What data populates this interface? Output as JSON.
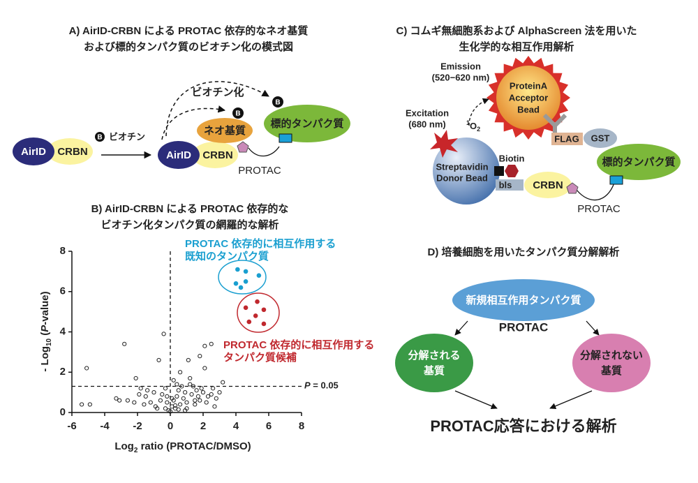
{
  "panel_a": {
    "title_lines": [
      "A) AirID-CRBN による PROTAC 依存的なネオ基質",
      "および標的タンパク質のビオチン化の模式図"
    ],
    "airid": "AirID",
    "crbn": "CRBN",
    "biotin_icon": "B",
    "biotin_label": "ビオチン",
    "biotinylation": "ビオチン化",
    "neo_substrate": "ネオ基質",
    "target": "標的タンパク質",
    "protac": "PROTAC"
  },
  "chart_data": {
    "type": "scatter",
    "title_lines": [
      "B) AirID-CRBN による PROTAC 依存的な",
      "ビオチン化タンパク質の網羅的な解析"
    ],
    "xlabel_parts": [
      "Log",
      "2",
      " ratio (PROTAC/DMSO)"
    ],
    "ylabel_parts": [
      "- Log",
      "10",
      " (",
      "P",
      "-value)"
    ],
    "xlim": [
      -6,
      8
    ],
    "ylim": [
      0,
      8
    ],
    "xticks": [
      -6,
      -4,
      -2,
      0,
      2,
      4,
      6,
      8
    ],
    "yticks": [
      0,
      2,
      4,
      6,
      8
    ],
    "threshold_y": 1.3,
    "threshold_label_parts": [
      "P",
      " = 0.05"
    ],
    "threshold_x": 0,
    "series": [
      {
        "color": "#222222",
        "x": [
          -5.4,
          -4.9,
          -5.1,
          -3.3,
          -3.1,
          -2.8,
          -2.6,
          -2.1,
          -1.9,
          -1.6,
          -1.5,
          -1.2,
          -1.0,
          -0.9,
          -0.7,
          -0.6,
          -0.5,
          -0.4,
          -0.3,
          -0.2,
          -0.1,
          0.0,
          0.1,
          0.2,
          0.3,
          0.4,
          0.5,
          0.6,
          0.7,
          0.8,
          0.9,
          1.0,
          1.1,
          1.2,
          1.3,
          1.4,
          1.5,
          1.6,
          1.7,
          1.8,
          1.9,
          2.0,
          2.1,
          2.2,
          2.3,
          2.5,
          2.6,
          2.8,
          3.0,
          3.2,
          -0.8,
          -1.4,
          0.2,
          0.5,
          1.0,
          1.5,
          2.1,
          2.5,
          -0.3,
          0.1,
          0.3,
          0.6,
          -2.2,
          -0.2,
          0.4,
          1.2,
          1.8,
          2.7,
          -1.8,
          0.9
        ],
        "values": [
          0.4,
          0.4,
          2.2,
          0.7,
          0.6,
          3.4,
          0.6,
          1.7,
          0.9,
          0.4,
          0.8,
          0.5,
          1.0,
          0.3,
          2.6,
          0.6,
          0.9,
          3.9,
          0.2,
          0.5,
          0.1,
          0.05,
          0.3,
          0.6,
          0.2,
          0.8,
          1.1,
          0.4,
          1.3,
          0.7,
          1.0,
          0.5,
          2.6,
          1.4,
          0.9,
          1.3,
          0.6,
          1.1,
          0.8,
          2.8,
          1.2,
          1.0,
          3.3,
          0.5,
          0.8,
          3.4,
          1.2,
          0.7,
          1.0,
          1.5,
          0.2,
          1.1,
          1.6,
          0.15,
          0.2,
          0.4,
          2.2,
          0.9,
          1.2,
          0.7,
          0.35,
          2.0,
          0.5,
          0.8,
          1.4,
          1.7,
          0.6,
          0.3,
          1.2,
          0.1
        ]
      },
      {
        "color": "#1a9fd0",
        "annotation_lines": [
          "PROTAC 依存的に相互作用する",
          "既知のタンパク質"
        ],
        "x": [
          4.1,
          4.6,
          5.4,
          4.0,
          4.6,
          4.3
        ],
        "values": [
          7.1,
          7.0,
          6.8,
          6.4,
          6.5,
          6.2
        ]
      },
      {
        "color": "#c0282e",
        "annotation_lines": [
          "PROTAC 依存的に相互作用する",
          "タンパク質候補"
        ],
        "x": [
          5.3,
          4.6,
          5.7,
          5.2,
          4.8,
          5.7
        ],
        "values": [
          5.5,
          5.2,
          5.1,
          4.8,
          4.5,
          4.4
        ]
      }
    ]
  },
  "panel_c": {
    "title_lines": [
      "C) コムギ無細胞系および AlphaScreen 法を用いた",
      "生化学的な相互作用解析"
    ],
    "emission_lines": [
      "Emission",
      "(520−620 nm)"
    ],
    "acceptor_lines": [
      "ProteinA",
      "Acceptor",
      "Bead"
    ],
    "excitation_lines": [
      "Excitation",
      "(680 nm)"
    ],
    "singlet_oxygen_parts": [
      "1",
      "O",
      "2"
    ],
    "donor_lines": [
      "Streptavidin",
      "Donor Bead"
    ],
    "biotin": "Biotin",
    "bls": "bls",
    "crbn": "CRBN",
    "flag": "FLAG",
    "gst": "GST",
    "target": "標的タンパク質",
    "protac": "PROTAC"
  },
  "panel_d": {
    "title": "D) 培養細胞を用いたタンパク質分解解析",
    "top": "新規相互作用タンパク質",
    "protac": "PROTAC",
    "left_lines": [
      "分解される",
      "基質"
    ],
    "right_lines": [
      "分解されない",
      "基質"
    ],
    "bottom": "PROTAC応答における解析"
  }
}
